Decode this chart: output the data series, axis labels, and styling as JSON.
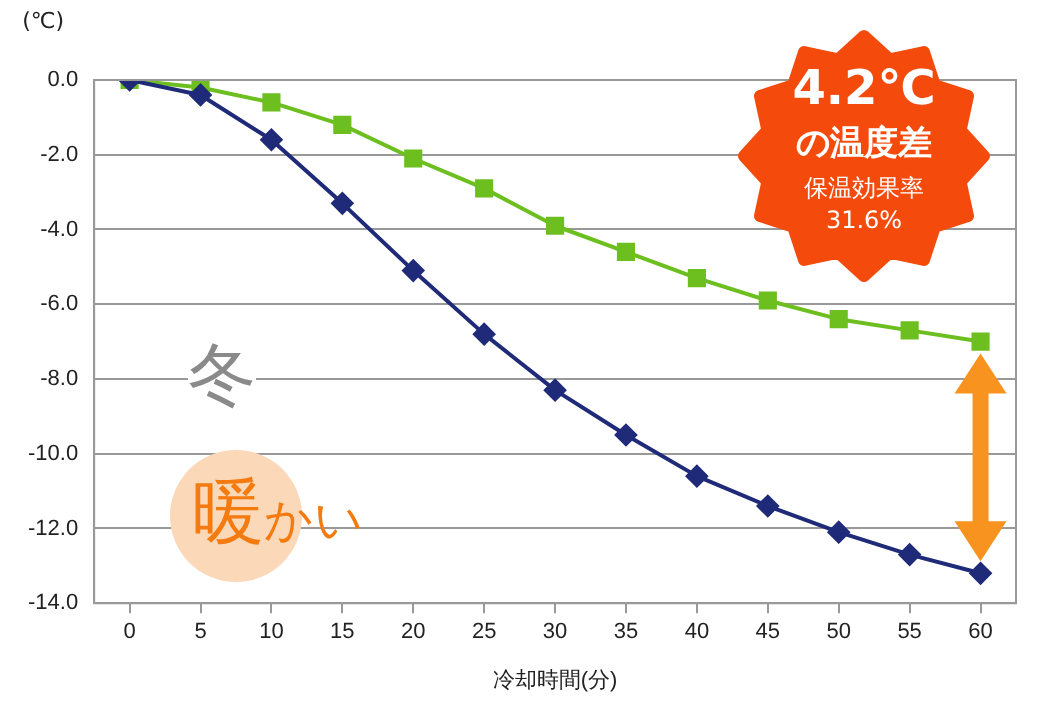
{
  "chart_data": {
    "type": "line",
    "xlabel": "冷却時間(分)",
    "ylabel": "(℃)",
    "categories": [
      "0",
      "5",
      "10",
      "15",
      "20",
      "25",
      "30",
      "35",
      "40",
      "45",
      "50",
      "55",
      "60"
    ],
    "series": [
      {
        "color": "#6cbf1f",
        "marker": "square",
        "values": [
          0,
          -0.2,
          -0.6,
          -1.2,
          -2.1,
          -2.9,
          -3.9,
          -4.6,
          -5.3,
          -5.9,
          -6.4,
          -6.7,
          -7.0
        ]
      },
      {
        "color": "#1f2a78",
        "marker": "diamond",
        "values": [
          0,
          -0.4,
          -1.6,
          -3.3,
          -5.1,
          -6.8,
          -8.3,
          -9.5,
          -10.6,
          -11.4,
          -12.1,
          -12.7,
          -13.2
        ]
      }
    ],
    "ylim": [
      -14,
      0
    ],
    "yticks": [
      {
        "value": 0,
        "label": "0.0"
      },
      {
        "value": -2,
        "label": "-2.0"
      },
      {
        "value": -4,
        "label": "-4.0"
      },
      {
        "value": -6,
        "label": "-6.0"
      },
      {
        "value": -8,
        "label": "-8.0"
      },
      {
        "value": -10,
        "label": "-10.0"
      },
      {
        "value": -12,
        "label": "-12.0"
      },
      {
        "value": -14,
        "label": "-14.0"
      }
    ],
    "grid": "y",
    "legend": false,
    "annotations": [
      "4.2℃",
      "の温度差",
      "保温効果率",
      "31.6%",
      "冬",
      "暖かい"
    ]
  }
}
